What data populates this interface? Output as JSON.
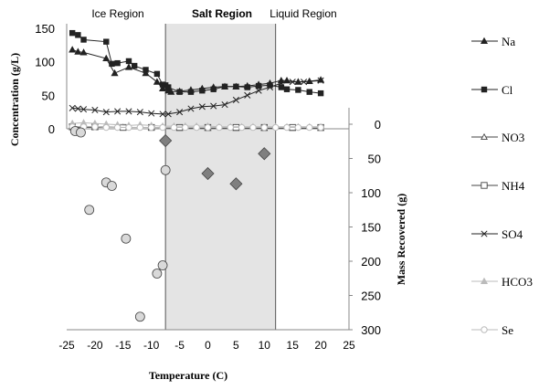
{
  "chart_data": {
    "type": "scatter",
    "x_axis": {
      "label": "Temperature (C)",
      "range": [
        -25,
        25
      ],
      "ticks": [
        "-25",
        "-20",
        "-15",
        "-10",
        "-5",
        "0",
        "5",
        "10",
        "15",
        "20",
        "25"
      ]
    },
    "y_axis_left": {
      "label": "Concentration (g/L)",
      "range": [
        0,
        150
      ],
      "ticks": [
        "0",
        "50",
        "100",
        "150"
      ]
    },
    "y_axis_right": {
      "label": "Mass Recovered (g)",
      "range": [
        0,
        300
      ],
      "inverted": true,
      "ticks": [
        "0",
        "50",
        "100",
        "150",
        "200",
        "250",
        "300"
      ]
    },
    "regions": [
      {
        "label": "Ice Region",
        "x": [
          -25,
          -7.5
        ],
        "shaded": false
      },
      {
        "label": "Salt Region",
        "x": [
          -7.5,
          12
        ],
        "shaded": true
      },
      {
        "label": "Liquid Region",
        "x": [
          12,
          25
        ],
        "shaded": false
      }
    ],
    "legend": {
      "position": "right",
      "entries": [
        "Na",
        "Cl",
        "NO3",
        "NH4",
        "SO4",
        "HCO3",
        "Se"
      ]
    },
    "series": [
      {
        "name": "Na",
        "axis": "left",
        "marker": "triangle-filled",
        "color": "#222222",
        "x": [
          -24,
          -23,
          -22,
          -18,
          -16.5,
          -14,
          -11,
          -9,
          -8,
          -7,
          -6.5,
          -5,
          -3,
          -1,
          1,
          3,
          5,
          7,
          9,
          11,
          13,
          14,
          16,
          18,
          20
        ],
        "y": [
          118,
          115,
          114,
          105,
          83,
          92,
          83,
          70,
          60,
          57,
          55,
          56,
          58,
          60,
          62,
          63,
          63,
          64,
          66,
          68,
          72,
          72,
          70,
          71,
          73
        ]
      },
      {
        "name": "Cl",
        "axis": "left",
        "marker": "square-filled",
        "color": "#222222",
        "x": [
          -24,
          -23,
          -22,
          -18,
          -17,
          -16,
          -14,
          -13,
          -11,
          -9,
          -8,
          -7.5,
          -7,
          -5,
          -3,
          -1,
          1,
          3,
          5,
          7,
          9,
          11,
          13,
          14,
          16,
          18,
          20
        ],
        "y": [
          143,
          140,
          133,
          130,
          97,
          98,
          101,
          94,
          88,
          82,
          66,
          65,
          62,
          55,
          55,
          57,
          59,
          63,
          63,
          62,
          64,
          65,
          62,
          59,
          58,
          55,
          53
        ]
      },
      {
        "name": "NO3",
        "axis": "left",
        "marker": "triangle-open",
        "color": "#444444",
        "x": [
          -24,
          -20,
          -15,
          -10,
          -5,
          0,
          5,
          10,
          15,
          20
        ],
        "y": [
          2,
          2,
          2,
          2,
          1,
          1,
          1,
          1,
          1,
          1
        ]
      },
      {
        "name": "NH4",
        "axis": "left",
        "marker": "square-open",
        "color": "#444444",
        "x": [
          -24,
          -20,
          -15,
          -10,
          -5,
          0,
          5,
          10,
          15,
          20
        ],
        "y": [
          3,
          3,
          2,
          2,
          2,
          2,
          2,
          2,
          2,
          2
        ]
      },
      {
        "name": "SO4",
        "axis": "left",
        "marker": "x",
        "color": "#222222",
        "x": [
          -24,
          -23,
          -22,
          -20,
          -18,
          -16,
          -14,
          -12,
          -10,
          -8,
          -7,
          -5,
          -3,
          -1,
          1,
          3,
          5,
          7,
          9,
          11,
          13,
          15,
          17,
          20
        ],
        "y": [
          31,
          30,
          29,
          28,
          25,
          26,
          26,
          25,
          23,
          22,
          22,
          25,
          30,
          33,
          34,
          36,
          43,
          50,
          57,
          62,
          68,
          70,
          70,
          72
        ]
      },
      {
        "name": "HCO3",
        "axis": "left",
        "marker": "triangle-filled",
        "color": "#bbbbbb",
        "x": [
          -24,
          -22,
          -20,
          -18,
          -16,
          -14,
          -12,
          -10,
          -8,
          -6,
          -4,
          -2,
          0,
          2,
          4,
          6,
          8,
          10,
          12,
          14,
          16,
          18,
          20
        ],
        "y": [
          8,
          9,
          8,
          7,
          6,
          5,
          6,
          5,
          4,
          4,
          4,
          4,
          4,
          3,
          3,
          3,
          3,
          3,
          3,
          3,
          3,
          3,
          3
        ]
      },
      {
        "name": "Se",
        "axis": "left",
        "marker": "circle-open",
        "color": "#bbbbbb",
        "x": [
          -24,
          -22,
          -20,
          -18,
          -16,
          -14,
          -12,
          -10,
          -8,
          -6,
          -4,
          -2,
          0,
          2,
          4,
          6,
          8,
          10,
          12,
          14,
          16,
          18,
          20
        ],
        "y": [
          3,
          3,
          3,
          2,
          2,
          2,
          2,
          2,
          2,
          2,
          2,
          2,
          2,
          2,
          2,
          2,
          2,
          2,
          2,
          2,
          2,
          2,
          2
        ]
      },
      {
        "name": "",
        "axis": "right",
        "marker": "circle-light",
        "color": "#cccccc",
        "x": [
          -23.5,
          -22.5,
          -21,
          -18,
          -17,
          -14.5,
          -9,
          -8,
          -7.5,
          -12
        ],
        "y": [
          10,
          12,
          125,
          85,
          90,
          167,
          218,
          206,
          67,
          281
        ]
      },
      {
        "name": "",
        "axis": "right",
        "marker": "diamond",
        "color": "#7f7f7f",
        "x": [
          -7.5,
          0,
          5,
          10
        ],
        "y": [
          24,
          72,
          87,
          43
        ]
      }
    ]
  }
}
